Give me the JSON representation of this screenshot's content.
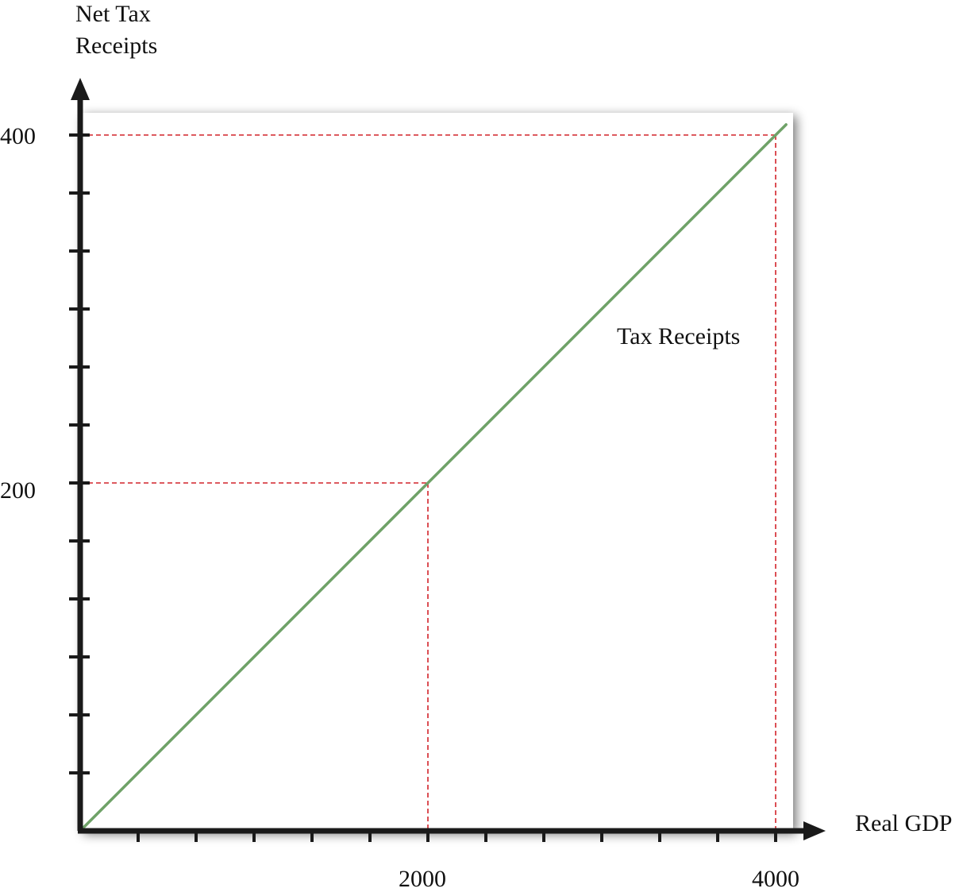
{
  "chart_data": {
    "type": "line",
    "xlabel": "Real GDP",
    "ylabel": [
      "Net Tax",
      "Receipts"
    ],
    "xlim": [
      0,
      4000
    ],
    "ylim": [
      0,
      400
    ],
    "x_tick_labels": [
      "2000",
      "4000"
    ],
    "y_tick_labels": [
      "200",
      "400"
    ],
    "x_minor_ticks": 12,
    "y_minor_ticks": 12,
    "series": [
      {
        "name": "Tax Receipts",
        "x": [
          0,
          4000
        ],
        "y": [
          0,
          400
        ]
      }
    ],
    "reference_points": [
      {
        "x": 2000,
        "y": 200
      },
      {
        "x": 4000,
        "y": 400
      }
    ],
    "colors": {
      "line": "#6fa268",
      "reference": "#d2232a",
      "axis": "#1a1a1a"
    },
    "grid": false
  }
}
